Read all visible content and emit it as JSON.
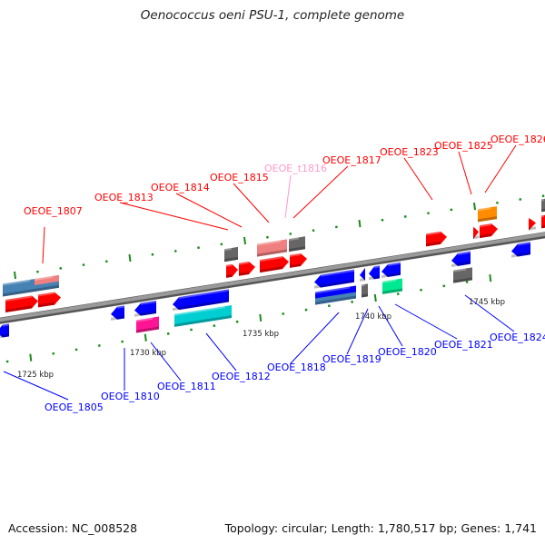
{
  "title": "Oenococcus oeni PSU-1, complete genome",
  "footer": {
    "accession": "Accession: NC_008528",
    "summary": "Topology: circular; Length: 1,780,517 bp; Genes: 1,741"
  },
  "colors": {
    "forward": "#ff0000",
    "reverse": "#0000ff",
    "rna": "#ff99cc"
  },
  "top_labels": [
    {
      "text": "OEOE_1807",
      "color": "#ff0000"
    },
    {
      "text": "OEOE_1813",
      "color": "#ff0000"
    },
    {
      "text": "OEOE_1814",
      "color": "#ff0000"
    },
    {
      "text": "OEOE_1815",
      "color": "#ff0000"
    },
    {
      "text": "OEOE_t1816",
      "color": "#ff99cc"
    },
    {
      "text": "OEOE_1817",
      "color": "#ff0000"
    },
    {
      "text": "OEOE_1823",
      "color": "#ff0000"
    },
    {
      "text": "OEOE_1825",
      "color": "#ff0000"
    },
    {
      "text": "OEOE_1826",
      "color": "#ff0000"
    }
  ],
  "bottom_labels": [
    {
      "text": "OEOE_1805",
      "color": "#0000ff"
    },
    {
      "text": "OEOE_1810",
      "color": "#0000ff"
    },
    {
      "text": "OEOE_1811",
      "color": "#0000ff"
    },
    {
      "text": "OEOE_1812",
      "color": "#0000ff"
    },
    {
      "text": "OEOE_1818",
      "color": "#0000ff"
    },
    {
      "text": "OEOE_1819",
      "color": "#0000ff"
    },
    {
      "text": "OEOE_1820",
      "color": "#0000ff"
    },
    {
      "text": "OEOE_1821",
      "color": "#0000ff"
    },
    {
      "text": "OEOE_1824",
      "color": "#0000ff"
    }
  ],
  "scale_labels": [
    "1725 kbp",
    "1730 kbp",
    "1735 kbp",
    "1740 kbp",
    "1745 kbp"
  ]
}
